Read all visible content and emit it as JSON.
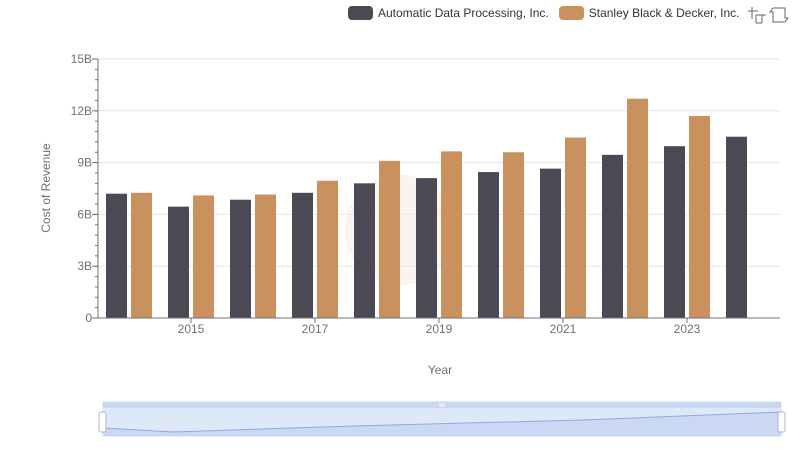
{
  "chart_data": {
    "type": "bar",
    "x": [
      2014,
      2015,
      2016,
      2017,
      2018,
      2019,
      2020,
      2021,
      2022,
      2023,
      2024
    ],
    "x_tick_labels": [
      "2015",
      "2017",
      "2019",
      "2021",
      "2023"
    ],
    "series": [
      {
        "name": "Automatic Data Processing, Inc.",
        "color": "#4a4954",
        "values": [
          7.2,
          6.45,
          6.85,
          7.25,
          7.8,
          8.1,
          8.45,
          8.65,
          9.45,
          9.95,
          10.5
        ]
      },
      {
        "name": "Stanley Black & Decker, Inc.",
        "color": "#c8915e",
        "values": [
          7.25,
          7.1,
          7.15,
          7.95,
          9.1,
          9.65,
          9.6,
          10.45,
          12.7,
          11.7,
          null
        ]
      }
    ],
    "ylabel": "Cost of Revenue",
    "xlabel": "Year",
    "ylim": [
      0,
      15
    ],
    "y_ticks": [
      0,
      3,
      6,
      9,
      12,
      15
    ],
    "y_tick_labels": [
      "0",
      "3B",
      "6B",
      "9B",
      "12B",
      "15B"
    ],
    "grid": "horizontal",
    "legend_position": "top-right"
  },
  "toolbox": {
    "zoom_icon": "zoom-icon",
    "restore_icon": "restore-icon"
  },
  "datazoom": {
    "range_start": 0,
    "range_end": 1
  }
}
